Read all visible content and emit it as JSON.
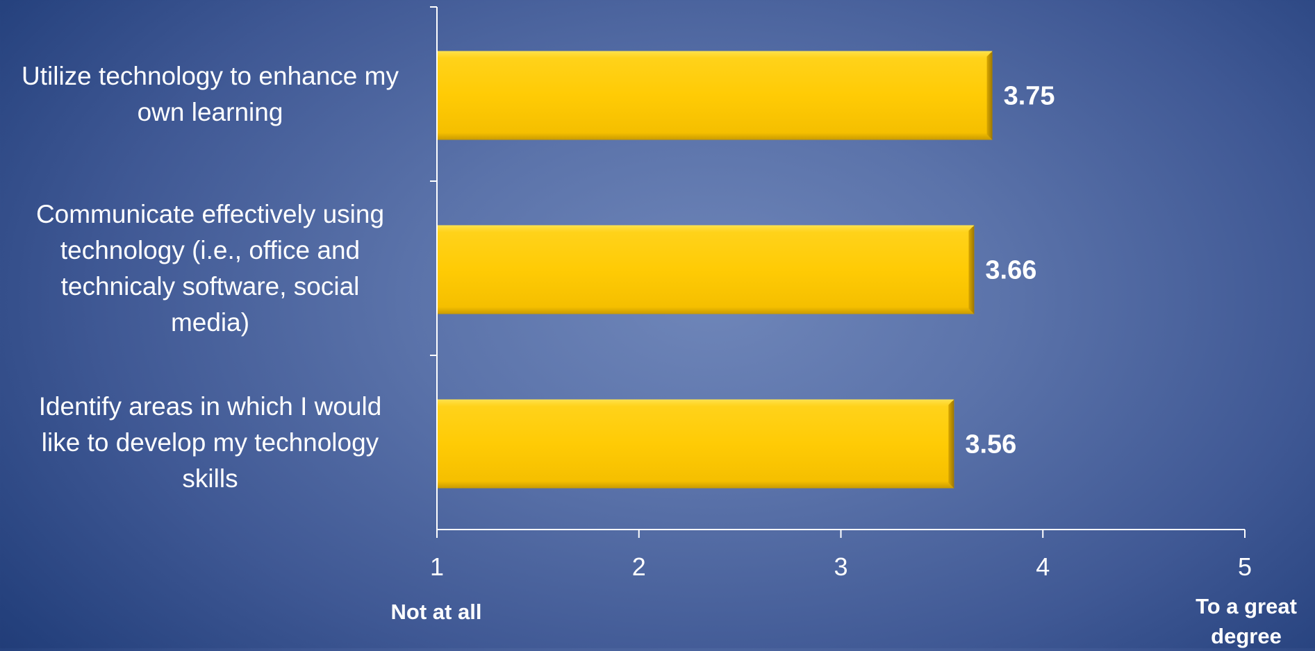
{
  "chart_data": {
    "type": "bar",
    "orientation": "horizontal",
    "categories": [
      "Utilize technology to enhance my\nown learning",
      "Communicate effectively using\ntechnology (i.e., office and\ntechnicaly software, social\nmedia)",
      "Identify areas in which I would\nlike to develop my technology\nskills"
    ],
    "values": [
      3.75,
      3.66,
      3.56
    ],
    "data_labels": [
      "3.75",
      "3.66",
      "3.56"
    ],
    "xlim": [
      1,
      5
    ],
    "x_ticks": [
      1,
      2,
      3,
      4,
      5
    ],
    "x_tick_labels": [
      "1",
      "2",
      "3",
      "4",
      "5"
    ],
    "scale_labels": {
      "low": "Not at all",
      "high": "To a great\ndegree"
    },
    "grid": false,
    "legend": "none",
    "colors": {
      "bar_fill": "#ffcb05",
      "bar_highlight": "#ffe14a",
      "bar_shadow": "#b58a00",
      "axis": "#ffffff",
      "text": "#ffffff"
    }
  }
}
